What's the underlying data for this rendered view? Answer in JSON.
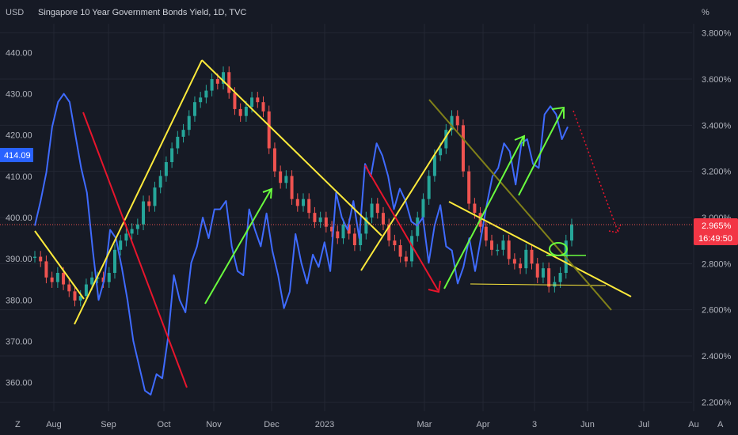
{
  "chart_data": {
    "type": "line",
    "title": "Singapore 10 Year Government Bonds Yield, 1D, TVC",
    "left_axis": {
      "unit": "USD",
      "ticks": [
        "440.00",
        "430.00",
        "420.00",
        "410.00",
        "400.00",
        "390.00",
        "380.00",
        "370.00",
        "360.00"
      ],
      "range": [
        353,
        447
      ]
    },
    "right_axis": {
      "unit": "%",
      "ticks": [
        "3.800%",
        "3.600%",
        "3.400%",
        "3.200%",
        "3.000%",
        "2.800%",
        "2.600%",
        "2.400%",
        "2.200%"
      ],
      "range": [
        2.16,
        3.84
      ]
    },
    "x_ticks": [
      "Aug",
      "Sep",
      "Oct",
      "Nov",
      "Dec",
      "2023",
      "Mar",
      "Apr",
      "3",
      "Jun",
      "Jul",
      "Au"
    ],
    "left_price_label": "414.09",
    "last_value_label": "2.965%",
    "countdown_label": "16:49:50",
    "bottom_left_label": "Z",
    "bottom_right_label": "A",
    "series": [
      {
        "name": "",
        "axis": "right",
        "kind": "candles",
        "values": [
          2.83,
          2.81,
          2.74,
          2.72,
          2.76,
          2.71,
          2.68,
          2.64,
          2.66,
          2.71,
          2.74,
          2.74,
          2.72,
          2.76,
          2.86,
          2.9,
          2.93,
          2.95,
          2.97,
          3.07,
          3.05,
          3.13,
          3.18,
          3.24,
          3.3,
          3.35,
          3.38,
          3.44,
          3.5,
          3.52,
          3.55,
          3.6,
          3.58,
          3.63,
          3.54,
          3.47,
          3.44,
          3.48,
          3.52,
          3.5,
          3.46,
          3.3,
          3.2,
          3.15,
          3.18,
          3.08,
          3.05,
          3.08,
          3.02,
          2.98,
          3.0,
          2.96,
          2.94,
          2.91,
          2.97,
          2.93,
          2.88,
          2.93,
          3.0,
          3.06,
          3.02,
          2.97,
          2.9,
          2.88,
          2.83,
          2.81,
          2.92,
          3.0,
          3.08,
          3.18,
          3.27,
          3.3,
          3.38,
          3.44,
          3.4,
          3.2,
          3.06,
          3.02,
          2.96,
          2.9,
          2.86,
          2.86,
          2.9,
          2.82,
          2.8,
          2.78,
          2.86,
          2.8,
          2.74,
          2.78,
          2.7,
          2.72,
          2.76,
          2.9,
          2.97
        ]
      },
      {
        "name": "",
        "axis": "left",
        "kind": "line",
        "values": [
          398,
          404,
          411,
          422,
          428,
          430,
          428,
          420,
          412,
          406,
          392,
          380,
          385,
          397,
          395,
          388,
          380,
          370,
          364,
          358,
          357,
          362,
          361,
          371,
          386,
          380,
          377,
          389,
          393,
          400,
          395,
          402,
          402,
          404,
          393,
          387,
          386,
          402,
          397,
          393,
          401,
          392,
          386,
          378,
          382,
          396,
          389,
          384,
          391,
          388,
          394,
          387,
          406,
          400,
          397,
          404,
          395,
          413,
          410,
          418,
          415,
          410,
          402,
          407,
          404,
          399,
          398,
          400,
          389,
          398,
          403,
          393,
          392,
          384,
          388,
          395,
          387,
          395,
          403,
          410,
          412,
          418,
          416,
          408,
          418,
          419,
          413,
          412,
          425,
          427,
          425,
          419,
          422
        ]
      }
    ],
    "annotations": [
      "yellow trendlines",
      "red down arrows",
      "green up arrows",
      "olive trendline",
      "yellow horizontal support",
      "green horizontal line",
      "green ellipse",
      "dotted red projection arrow",
      "red last-price line"
    ],
    "colors": {
      "background": "#161a25",
      "grid": "#232733",
      "up": "#26a69a",
      "down": "#ef5350",
      "line": "#3f6bff",
      "yellow": "#ffeb3b",
      "olive": "#808019",
      "green_arrow": "#6afc3e",
      "red_arrow": "#e8152c",
      "badge_blue": "#2962ff",
      "badge_red": "#f23645"
    },
    "grid": true
  }
}
